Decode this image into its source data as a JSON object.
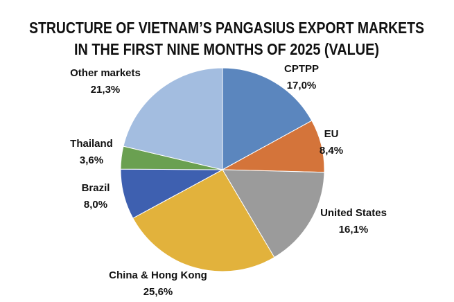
{
  "chart_data": {
    "type": "pie",
    "title": [
      "STRUCTURE OF VIETNAM’S PANGASIUS EXPORT MARKETS",
      "IN THE FIRST NINE MONTHS OF 2025 (VALUE)"
    ],
    "categories": [
      "CPTPP",
      "EU",
      "United States",
      "China & Hong Kong",
      "Brazil",
      "Thailand",
      "Other markets"
    ],
    "values": [
      17.0,
      8.4,
      16.1,
      25.6,
      8.0,
      3.6,
      21.3
    ],
    "value_labels": [
      "17,0%",
      "8,4%",
      "16,1%",
      "25,6%",
      "8,0%",
      "3,6%",
      "21,3%"
    ],
    "colors": [
      "#5b86be",
      "#d4743a",
      "#9b9b9b",
      "#e2b23c",
      "#3e60b0",
      "#6aa051",
      "#a3bde0"
    ]
  }
}
